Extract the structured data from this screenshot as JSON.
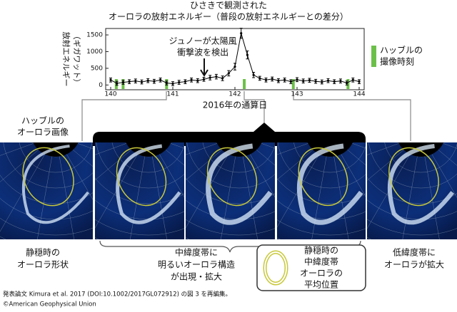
{
  "chart_data": {
    "type": "errorline",
    "title": [
      "ひさきで観測された",
      "オーロラの放射エネルギー（普段の放射エネルギーとの差分）"
    ],
    "ylabel": [
      "放射エネルギー",
      "（ギガワット）"
    ],
    "xlabel": "2016年の通算日",
    "x": [
      140.0,
      140.1,
      140.2,
      140.3,
      140.4,
      140.5,
      140.6,
      140.7,
      140.8,
      140.9,
      141.0,
      141.1,
      141.2,
      141.3,
      141.4,
      141.5,
      141.6,
      141.7,
      141.8,
      141.9,
      142.0,
      142.1,
      142.2,
      142.3,
      142.4,
      142.5,
      142.6,
      142.7,
      142.8,
      142.9,
      143.0,
      143.1,
      143.2,
      143.3,
      143.4,
      143.5,
      143.6,
      143.7,
      143.8,
      143.9,
      144.0
    ],
    "values": [
      150,
      50,
      80,
      100,
      120,
      90,
      130,
      110,
      150,
      60,
      40,
      80,
      100,
      150,
      130,
      170,
      220,
      250,
      200,
      350,
      550,
      1550,
      900,
      300,
      200,
      150,
      180,
      130,
      150,
      100,
      160,
      120,
      140,
      110,
      90,
      130,
      100,
      120,
      60,
      150,
      100
    ],
    "errors": [
      60,
      60,
      60,
      60,
      60,
      60,
      60,
      60,
      60,
      60,
      60,
      60,
      60,
      60,
      60,
      60,
      70,
      70,
      70,
      80,
      100,
      150,
      120,
      80,
      60,
      60,
      60,
      60,
      60,
      60,
      60,
      60,
      60,
      60,
      60,
      60,
      60,
      60,
      60,
      60,
      60
    ],
    "color": "#000000",
    "xlim": [
      140,
      144
    ],
    "xticks": [
      140,
      141,
      142,
      143,
      144
    ],
    "ylim": [
      -100,
      1650
    ],
    "yticks": [
      0,
      500,
      1000,
      1500
    ],
    "annotation": {
      "text": [
        "ジュノーが太陽風",
        "衝撃波を検出"
      ],
      "x": 141.53
    },
    "hubble": {
      "label": [
        "ハッブルの",
        "撮像時刻"
      ],
      "color": "#6cc04a",
      "times": [
        140.09,
        140.2,
        140.9,
        142.15,
        142.94,
        143.82
      ]
    }
  },
  "image_label": [
    "ハッブルの",
    "オーロラ画像"
  ],
  "captions": [
    [
      "静穏時の",
      "オーロラ形状"
    ],
    [
      "中緯度帯に",
      "明るいオーロラ構造",
      "が出現・拡大"
    ],
    [
      "低緯度帯に",
      "オーロラが拡大"
    ]
  ],
  "ring_legend": [
    "静穏時の",
    "中緯度帯",
    "オーロラの",
    "平均位置"
  ],
  "credit": [
    "発表論文 Kimura et al. 2017 (DOI:10.1002/2017GL072912) の図 3 を再編集。",
    "©American Geophysical Union"
  ]
}
